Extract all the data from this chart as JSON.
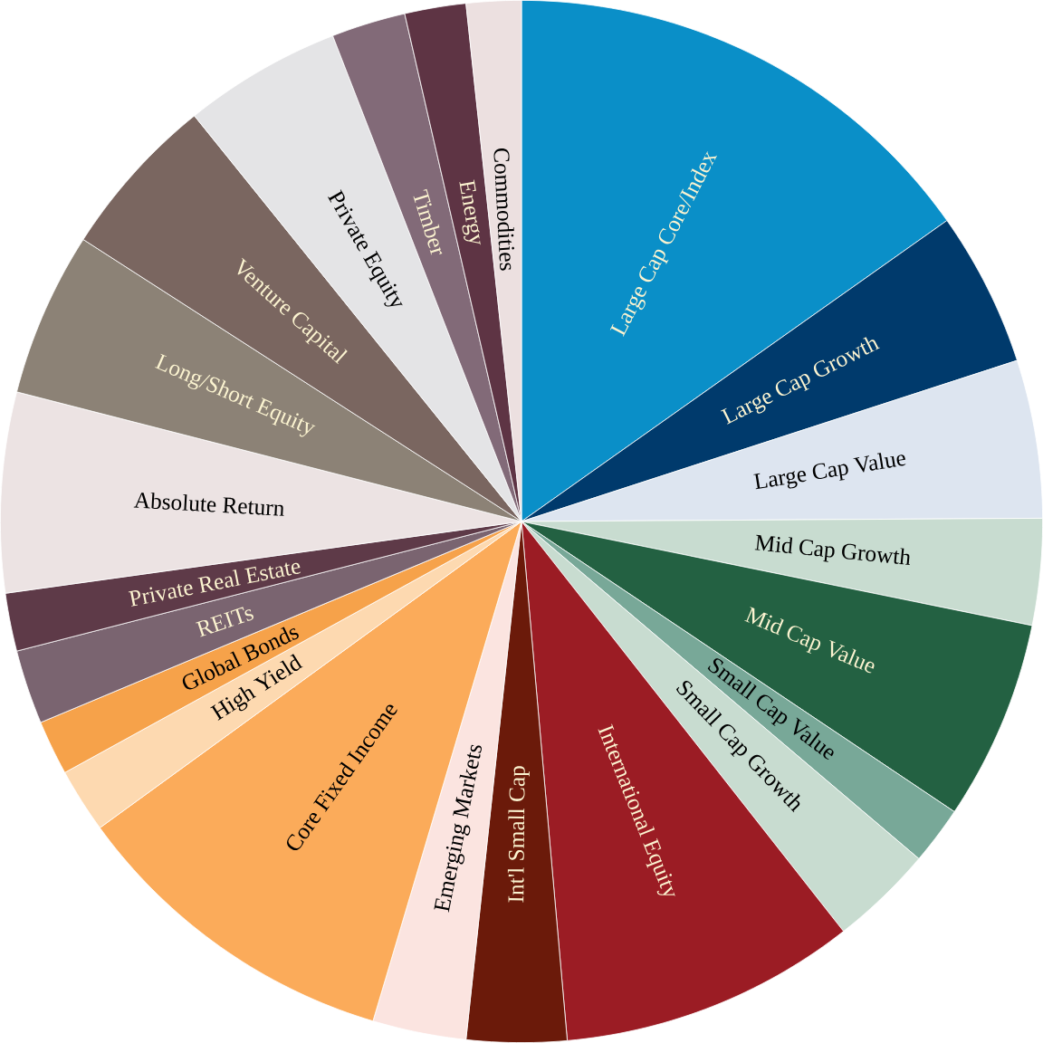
{
  "chart_data": {
    "type": "pie",
    "categories": [
      "Large Cap Core/Index",
      "Large Cap Growth",
      "Large Cap Value",
      "Mid Cap Growth",
      "Mid Cap Value",
      "Small Cap Value",
      "Small Cap Growth",
      "International Equity",
      "Int'l Small Cap",
      "Emerging Markets",
      "Core Fixed Income",
      "High Yield",
      "Global Bonds",
      "REITs",
      "Private Real Estate",
      "Absolute Return",
      "Long/Short Equity",
      "Venture Capital",
      "Private Equity",
      "Timber",
      "Energy",
      "Commodities"
    ],
    "values": [
      15.2,
      4.8,
      4.9,
      3.3,
      6.2,
      1.8,
      3.2,
      9.2,
      3.1,
      2.9,
      10.4,
      2.0,
      1.7,
      2.3,
      1.8,
      6.2,
      5.1,
      5.1,
      4.9,
      2.3,
      1.9,
      1.7
    ],
    "colors": [
      "#0a8fc8",
      "#003a6c",
      "#dde5f0",
      "#c8dcd0",
      "#236142",
      "#78a898",
      "#c8dcd0",
      "#9b1c24",
      "#6b1a0a",
      "#fbe4e0",
      "#fbab5a",
      "#fdd9b0",
      "#f6a24a",
      "#7a6470",
      "#5e3a48",
      "#ece3e3",
      "#8c8276",
      "#7a6660",
      "#e4e4e6",
      "#826a78",
      "#5e3444",
      "#ece0e0"
    ]
  }
}
